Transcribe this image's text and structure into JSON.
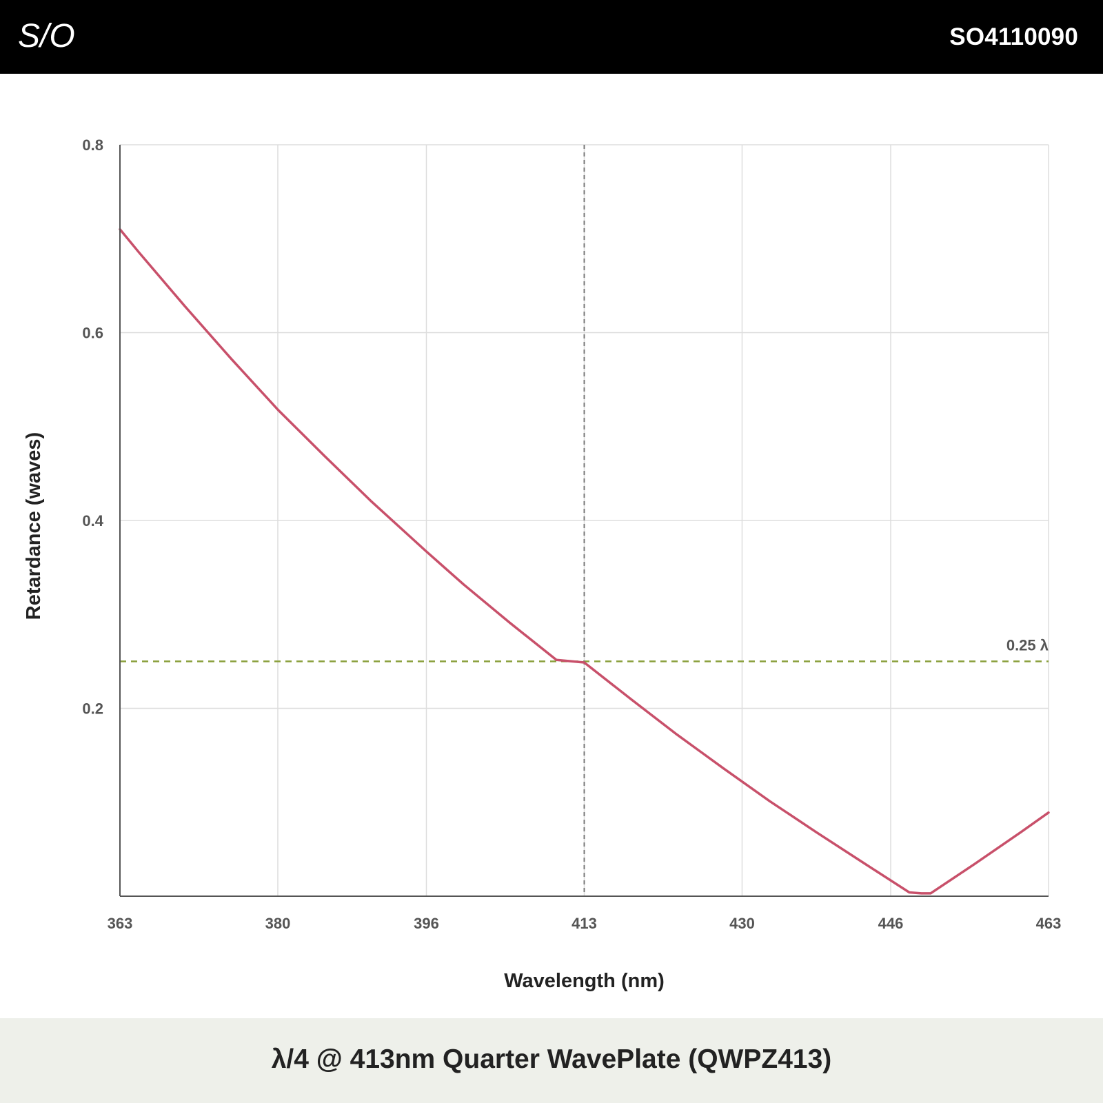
{
  "header": {
    "logo_text": "S/O",
    "part_number": "SO4110090"
  },
  "footer": {
    "title": "λ/4 @ 413nm Quarter WavePlate (QWPZ413)"
  },
  "colors": {
    "series_line": "#c8506a",
    "reference_line": "#8aa03c",
    "design_marker": "#777777",
    "grid": "#dddddd",
    "axis": "#555555"
  },
  "chart_data": {
    "type": "line",
    "title": "",
    "xlabel": "Wavelength (nm)",
    "ylabel": "Retardance (waves)",
    "xlim": [
      363,
      463
    ],
    "ylim": [
      0,
      0.8
    ],
    "x_ticks": [
      363,
      380,
      396,
      413,
      430,
      446,
      463
    ],
    "y_ticks": [
      0.2,
      0.4,
      0.6,
      0.8
    ],
    "grid": true,
    "series": [
      {
        "x": [
          363,
          365,
          370,
          375,
          380,
          385,
          390,
          396,
          400,
          405,
          410,
          413,
          418,
          423,
          428,
          433,
          438,
          443,
          448,
          449.3,
          450.3,
          455,
          460,
          463
        ],
        "y": [
          0.71,
          0.686,
          0.628,
          0.572,
          0.518,
          0.469,
          0.421,
          0.367,
          0.332,
          0.291,
          0.2515,
          0.2488,
          0.21,
          0.172,
          0.136,
          0.101,
          0.068,
          0.036,
          0.004,
          0.003,
          0.003,
          0.034,
          0.068,
          0.089
        ]
      }
    ],
    "reference_lines": [
      {
        "axis": "y",
        "value": 0.25,
        "label": "0.25 λ"
      },
      {
        "axis": "x",
        "value": 413,
        "label": ""
      }
    ],
    "legend": "none"
  }
}
